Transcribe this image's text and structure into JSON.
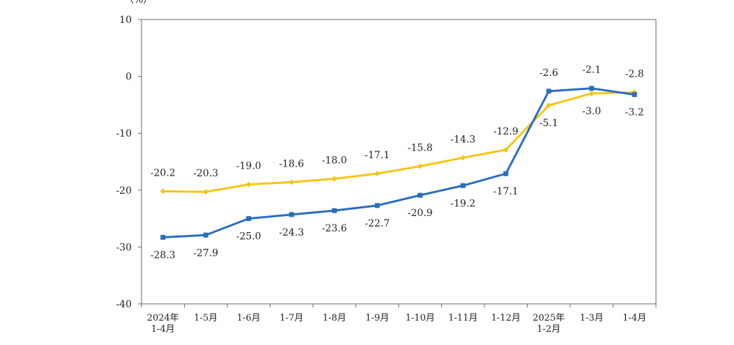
{
  "chart_data": {
    "type": "line",
    "title": "",
    "xlabel": "",
    "ylabel": "",
    "y_unit_label": "（%）",
    "ylim": [
      -40,
      10
    ],
    "y_ticks": [
      10,
      0,
      -10,
      -20,
      -30,
      -40
    ],
    "grid": false,
    "categories": [
      [
        "2024年",
        "1-4月"
      ],
      [
        "1-5月"
      ],
      [
        "1-6月"
      ],
      [
        "1-7月"
      ],
      [
        "1-8月"
      ],
      [
        "1-9月"
      ],
      [
        "1-10月"
      ],
      [
        "1-11月"
      ],
      [
        "1-12月"
      ],
      [
        "2025年",
        "1-2月"
      ],
      [
        "1-3月"
      ],
      [
        "1-4月"
      ]
    ],
    "series": [
      {
        "color": "#f5c518",
        "marker": "diamond",
        "values": [
          -20.2,
          -20.3,
          -19.0,
          -18.6,
          -18.0,
          -17.1,
          -15.8,
          -14.3,
          -12.9,
          -5.1,
          -3.0,
          -2.8
        ],
        "labels": [
          "-20.2",
          "-20.3",
          "-19.0",
          "-18.6",
          "-18.0",
          "-17.1",
          "-15.8",
          "-14.3",
          "-12.9",
          "-5.1",
          "-3.0",
          "-2.8"
        ]
      },
      {
        "color": "#2a6dbe",
        "marker": "square",
        "values": [
          -28.3,
          -27.9,
          -25.0,
          -24.3,
          -23.6,
          -22.7,
          -20.9,
          -19.2,
          -17.1,
          -2.6,
          -2.1,
          -3.2
        ],
        "labels": [
          "-28.3",
          "-27.9",
          "-25.0",
          "-24.3",
          "-23.6",
          "-22.7",
          "-20.9",
          "-19.2",
          "-17.1",
          "-2.6",
          "-2.1",
          "-3.2"
        ]
      }
    ]
  }
}
